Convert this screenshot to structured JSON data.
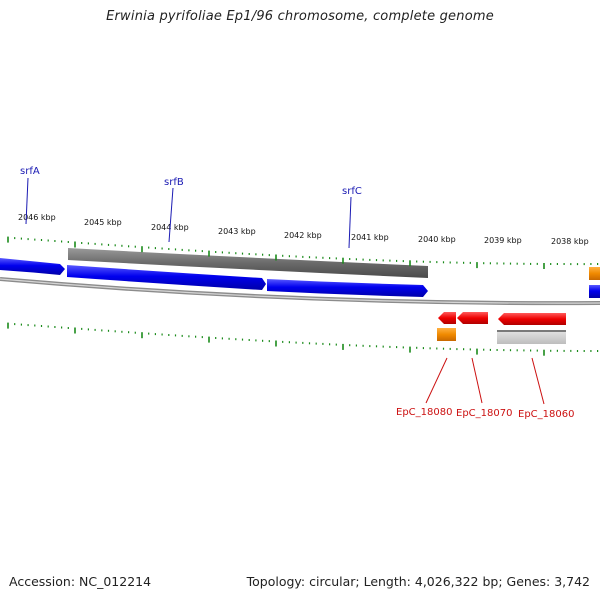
{
  "title": "Erwinia pyrifoliae Ep1/96 chromosome, complete genome",
  "scale_labels": [
    "2046 kbp",
    "2045 kbp",
    "2044 kbp",
    "2043 kbp",
    "2042 kbp",
    "2041 kbp",
    "2040 kbp",
    "2039 kbp",
    "2038 kbp"
  ],
  "genes_top": [
    {
      "name": "srfA",
      "color": "#1a1ab3"
    },
    {
      "name": "srfB",
      "color": "#1a1ab3"
    },
    {
      "name": "srfC",
      "color": "#1a1ab3"
    }
  ],
  "genes_bottom": [
    {
      "name": "EpC_18080",
      "color": "#cc1111"
    },
    {
      "name": "EpC_18070",
      "color": "#cc1111"
    },
    {
      "name": "EpC_18060",
      "color": "#cc1111"
    }
  ],
  "colors": {
    "forward_gene": "#0000ee",
    "reverse_gene": "#ee0000",
    "gray_feature": "#6b6b6b",
    "orange_feature": "#f08a00",
    "tick": "#1a8a1a"
  },
  "footer": {
    "accession": "Accession: NC_012214",
    "topology": "Topology: circular; Length: 4,026,322 bp; Genes: 3,742"
  }
}
